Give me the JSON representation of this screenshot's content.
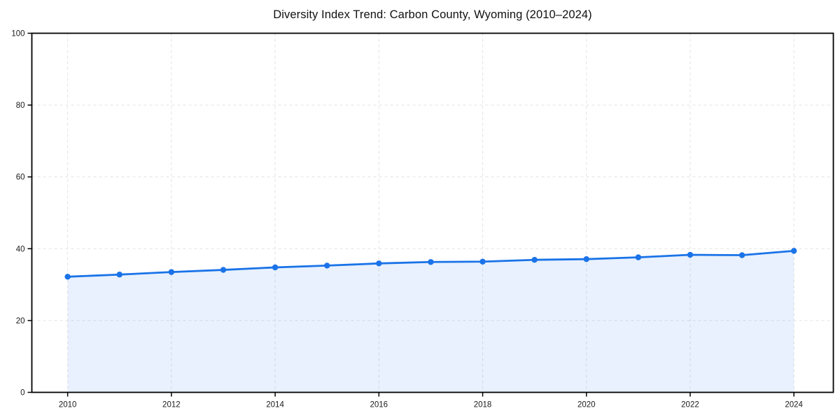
{
  "page": {
    "background_color": "#ffffff"
  },
  "chart_data": {
    "type": "area",
    "title": "Diversity Index Trend: Carbon County, Wyoming (2010–2024)",
    "xlabel": "",
    "ylabel": "",
    "x": [
      2010,
      2011,
      2012,
      2013,
      2014,
      2015,
      2016,
      2017,
      2018,
      2019,
      2020,
      2021,
      2022,
      2023,
      2024
    ],
    "series": [
      {
        "name": "Diversity Index",
        "values": [
          32.2,
          32.8,
          33.5,
          34.1,
          34.8,
          35.3,
          35.9,
          36.3,
          36.4,
          36.9,
          37.1,
          37.6,
          38.3,
          38.2,
          39.4
        ]
      }
    ],
    "ylim": [
      0,
      100
    ],
    "xticks": [
      2010,
      2012,
      2014,
      2016,
      2018,
      2020,
      2022,
      2024
    ],
    "yticks": [
      0,
      20,
      40,
      60,
      80,
      100
    ],
    "grid": true,
    "grid_style": "dashed",
    "legend": "none",
    "colors": {
      "line": "#1a73e8",
      "marker": "#1a73e8",
      "fill": "#1a73e8",
      "fill_opacity": 0.1,
      "gridline": "#e2e2e2",
      "spine": "#000000",
      "tick_text": "#1a1a1a",
      "title_text": "#111111"
    },
    "marker_radius": 4.2,
    "line_width": 2.8
  }
}
